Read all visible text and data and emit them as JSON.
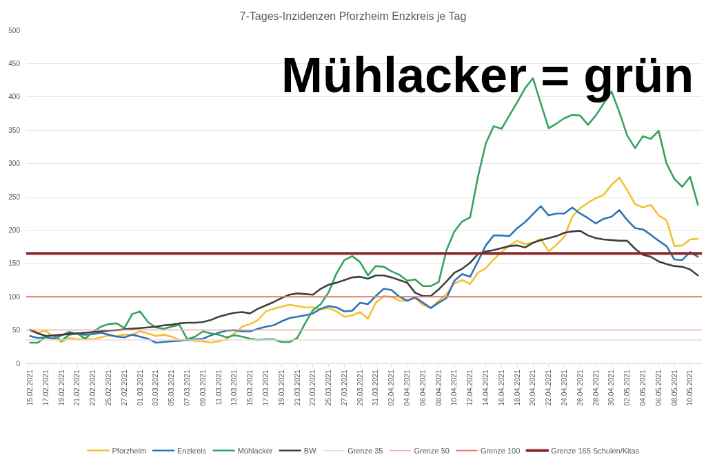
{
  "chart_data": {
    "type": "line",
    "title": "7-Tages-Inzidenzen Pforzheim Enzkreis je Tag",
    "annotations": [
      "Mühlacker = grün"
    ],
    "x": [
      "2021-02-15",
      "2021-02-16",
      "2021-02-17",
      "2021-02-18",
      "2021-02-19",
      "2021-02-20",
      "2021-02-21",
      "2021-02-22",
      "2021-02-23",
      "2021-02-24",
      "2021-02-25",
      "2021-02-26",
      "2021-02-27",
      "2021-02-28",
      "2021-03-01",
      "2021-03-02",
      "2021-03-03",
      "2021-03-04",
      "2021-03-05",
      "2021-03-06",
      "2021-03-07",
      "2021-03-08",
      "2021-03-09",
      "2021-03-10",
      "2021-03-11",
      "2021-03-12",
      "2021-03-13",
      "2021-03-14",
      "2021-03-15",
      "2021-03-16",
      "2021-03-17",
      "2021-03-18",
      "2021-03-19",
      "2021-03-20",
      "2021-03-21",
      "2021-03-22",
      "2021-03-23",
      "2021-03-24",
      "2021-03-25",
      "2021-03-26",
      "2021-03-27",
      "2021-03-28",
      "2021-03-29",
      "2021-03-30",
      "2021-03-31",
      "2021-04-01",
      "2021-04-02",
      "2021-04-03",
      "2021-04-04",
      "2021-04-05",
      "2021-04-06",
      "2021-04-07",
      "2021-04-08",
      "2021-04-09",
      "2021-04-10",
      "2021-04-11",
      "2021-04-12",
      "2021-04-13",
      "2021-04-14",
      "2021-04-15",
      "2021-04-16",
      "2021-04-17",
      "2021-04-18",
      "2021-04-19",
      "2021-04-20",
      "2021-04-21",
      "2021-04-22",
      "2021-04-23",
      "2021-04-24",
      "2021-04-25",
      "2021-04-26",
      "2021-04-27",
      "2021-04-28",
      "2021-04-29",
      "2021-04-30",
      "2021-05-01",
      "2021-05-02",
      "2021-05-03",
      "2021-05-04",
      "2021-05-05",
      "2021-05-06",
      "2021-05-07",
      "2021-05-08",
      "2021-05-09",
      "2021-05-10",
      "2021-05-11"
    ],
    "series": [
      {
        "name": "Pforzheim",
        "color": "#f2c230",
        "values": [
          51,
          46,
          49,
          39,
          32,
          38,
          36,
          37,
          36,
          39,
          42,
          41,
          43,
          43,
          48,
          45,
          41,
          43,
          40,
          35,
          35,
          34,
          33,
          31,
          33,
          36,
          45,
          55,
          59,
          65,
          78,
          82,
          85,
          88,
          86,
          84,
          84,
          81,
          83,
          78,
          70,
          72,
          77,
          67,
          91,
          101,
          100,
          94,
          94,
          98,
          88,
          83,
          94,
          104,
          120,
          125,
          119,
          136,
          143,
          156,
          167,
          177,
          184,
          179,
          181,
          187,
          168,
          178,
          190,
          220,
          233,
          241,
          248,
          253,
          268,
          279,
          260,
          239,
          234,
          238,
          222,
          215,
          176,
          177,
          186,
          187
        ]
      },
      {
        "name": "Enzkreis",
        "color": "#2e75b6",
        "values": [
          41,
          38,
          39,
          37,
          42,
          47,
          44,
          43,
          44,
          46,
          43,
          40,
          39,
          43,
          40,
          37,
          31,
          32,
          33,
          34,
          35,
          36,
          37,
          42,
          46,
          49,
          50,
          48,
          48,
          52,
          55,
          57,
          63,
          68,
          70,
          72,
          75,
          82,
          86,
          84,
          78,
          79,
          91,
          89,
          101,
          112,
          110,
          100,
          94,
          99,
          91,
          83,
          91,
          98,
          124,
          134,
          130,
          153,
          177,
          192,
          192,
          191,
          203,
          212,
          224,
          236,
          222,
          225,
          225,
          234,
          225,
          218,
          210,
          217,
          220,
          230,
          215,
          203,
          201,
          193,
          184,
          176,
          156,
          155,
          167,
          160
        ]
      },
      {
        "name": "Mühlacker",
        "color": "#33a35f",
        "values": [
          31,
          31,
          40,
          42,
          34,
          43,
          45,
          37,
          47,
          55,
          59,
          60,
          53,
          74,
          78,
          62,
          54,
          52,
          55,
          58,
          36,
          40,
          48,
          45,
          43,
          39,
          42,
          40,
          37,
          35,
          36,
          36,
          32,
          32,
          38,
          60,
          80,
          89,
          107,
          135,
          155,
          161,
          152,
          132,
          146,
          145,
          138,
          133,
          124,
          126,
          116,
          116,
          122,
          170,
          198,
          213,
          219,
          280,
          330,
          356,
          352,
          372,
          392,
          413,
          428,
          390,
          353,
          360,
          368,
          373,
          372,
          358,
          372,
          390,
          408,
          377,
          342,
          323,
          341,
          337,
          349,
          300,
          277,
          265,
          280,
          238
        ]
      },
      {
        "name": "BW",
        "color": "#3f3f3f",
        "values": [
          50,
          45,
          41,
          42,
          43,
          44,
          45,
          46,
          47,
          48,
          49,
          50,
          51,
          52,
          53,
          54,
          55,
          57,
          58,
          60,
          61,
          61,
          62,
          65,
          70,
          73,
          76,
          77,
          75,
          82,
          87,
          92,
          98,
          103,
          105,
          104,
          103,
          112,
          118,
          121,
          125,
          129,
          130,
          127,
          132,
          132,
          129,
          125,
          121,
          106,
          101,
          101,
          111,
          123,
          136,
          142,
          151,
          164,
          168,
          170,
          173,
          176,
          177,
          174,
          181,
          185,
          188,
          191,
          196,
          198,
          199,
          192,
          188,
          186,
          185,
          184,
          184,
          172,
          163,
          160,
          153,
          149,
          146,
          145,
          141,
          132
        ]
      }
    ],
    "ref_lines": [
      {
        "axis": "y",
        "value": 35,
        "label": "Grenze 35",
        "color": "#f6d5d5"
      },
      {
        "axis": "y",
        "value": 50,
        "label": "Grenze 50",
        "color": "#eeaaaa"
      },
      {
        "axis": "y",
        "value": 100,
        "label": "Grenze 100",
        "color": "#e07a70"
      },
      {
        "axis": "y",
        "value": 165,
        "label": "Grenze 165 Schulen/Kitas",
        "color": "#8e2a2a"
      }
    ],
    "xlim": [
      "2021-02-14T12:00",
      "2021-05-11T12:00"
    ],
    "xticks": [
      {
        "value": "2021-02-15",
        "label": "15.02.2021"
      },
      {
        "value": "2021-02-17",
        "label": "17.02.2021"
      },
      {
        "value": "2021-02-19",
        "label": "19.02.2021"
      },
      {
        "value": "2021-02-21",
        "label": "21.02.2021"
      },
      {
        "value": "2021-02-23",
        "label": "23.02.2021"
      },
      {
        "value": "2021-02-25",
        "label": "25.02.2021"
      },
      {
        "value": "2021-02-27",
        "label": "27.02.2021"
      },
      {
        "value": "2021-03-01",
        "label": "01.03.2021"
      },
      {
        "value": "2021-03-03",
        "label": "03.03.2021"
      },
      {
        "value": "2021-03-05",
        "label": "05.03.2021"
      },
      {
        "value": "2021-03-07",
        "label": "07.03.2021"
      },
      {
        "value": "2021-03-09",
        "label": "09.03.2021"
      },
      {
        "value": "2021-03-11",
        "label": "11.03.2021"
      },
      {
        "value": "2021-03-13",
        "label": "13.03.2021"
      },
      {
        "value": "2021-03-15",
        "label": "15.03.2021"
      },
      {
        "value": "2021-03-17",
        "label": "17.03.2021"
      },
      {
        "value": "2021-03-19",
        "label": "19.03.2021"
      },
      {
        "value": "2021-03-21",
        "label": "21.03.2021"
      },
      {
        "value": "2021-03-23",
        "label": "23.03.2021"
      },
      {
        "value": "2021-03-25",
        "label": "25.03.2021"
      },
      {
        "value": "2021-03-27",
        "label": "27.03.2021"
      },
      {
        "value": "2021-03-29",
        "label": "29.03.2021"
      },
      {
        "value": "2021-03-31",
        "label": "31.03.2021"
      },
      {
        "value": "2021-04-02",
        "label": "02.04.2021"
      },
      {
        "value": "2021-04-04",
        "label": "04.04.2021"
      },
      {
        "value": "2021-04-06",
        "label": "06.04.2021"
      },
      {
        "value": "2021-04-08",
        "label": "08.04.2021"
      },
      {
        "value": "2021-04-10",
        "label": "10.04.2021"
      },
      {
        "value": "2021-04-12",
        "label": "12.04.2021"
      },
      {
        "value": "2021-04-14",
        "label": "14.04.2021"
      },
      {
        "value": "2021-04-16",
        "label": "16.04.2021"
      },
      {
        "value": "2021-04-18",
        "label": "18.04.2021"
      },
      {
        "value": "2021-04-20",
        "label": "20.04.2021"
      },
      {
        "value": "2021-04-22",
        "label": "22.04.2021"
      },
      {
        "value": "2021-04-24",
        "label": "24.04.2021"
      },
      {
        "value": "2021-04-26",
        "label": "26.04.2021"
      },
      {
        "value": "2021-04-28",
        "label": "28.04.2021"
      },
      {
        "value": "2021-04-30",
        "label": "30.04.2021"
      },
      {
        "value": "2021-05-02",
        "label": "02.05.2021"
      },
      {
        "value": "2021-05-04",
        "label": "04.05.2021"
      },
      {
        "value": "2021-05-06",
        "label": "06.05.2021"
      },
      {
        "value": "2021-05-08",
        "label": "08.05.2021"
      },
      {
        "value": "2021-05-10",
        "label": "10.05.2021"
      }
    ],
    "ylim": [
      0,
      500
    ],
    "yticks": [
      0,
      50,
      100,
      150,
      200,
      250,
      300,
      350,
      400,
      450,
      500
    ],
    "grid": "y",
    "legend": "bottom"
  }
}
